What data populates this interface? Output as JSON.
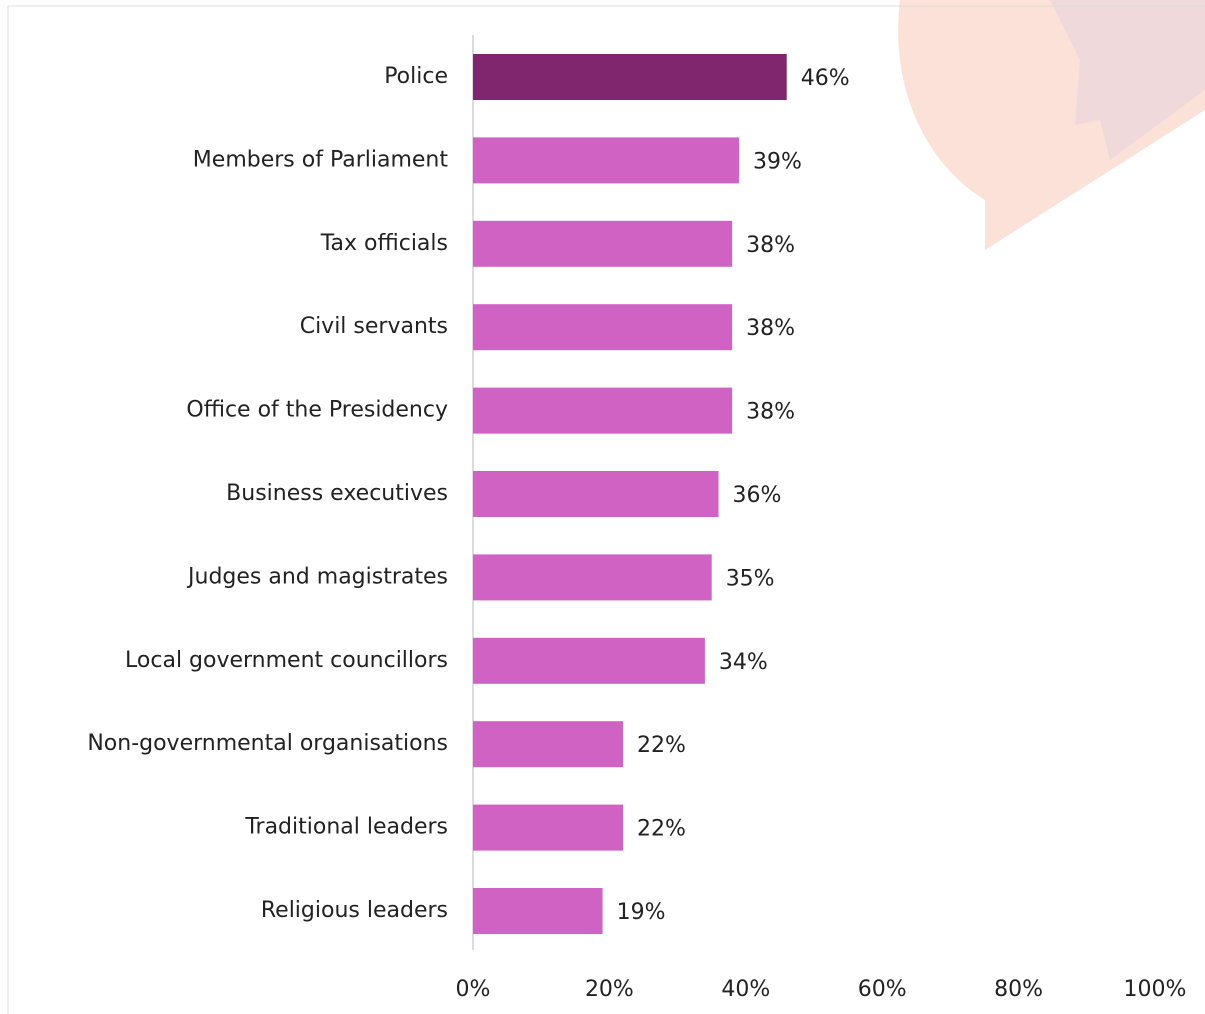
{
  "chart_data": {
    "type": "bar",
    "orientation": "horizontal",
    "categories": [
      "Police",
      "Members of Parliament",
      "Tax officials",
      "Civil servants",
      "Office of the Presidency",
      "Business executives",
      "Judges and magistrates",
      "Local government councillors",
      "Non-governmental organisations",
      "Traditional leaders",
      "Religious leaders"
    ],
    "values": [
      46,
      39,
      38,
      38,
      38,
      36,
      35,
      34,
      22,
      22,
      19
    ],
    "value_labels": [
      "46%",
      "39%",
      "38%",
      "38%",
      "38%",
      "36%",
      "35%",
      "34%",
      "22%",
      "22%",
      "19%"
    ],
    "colors": [
      "#80266f",
      "#d062c4",
      "#d062c4",
      "#d062c4",
      "#d062c4",
      "#d062c4",
      "#d062c4",
      "#d062c4",
      "#d062c4",
      "#d062c4",
      "#d062c4"
    ],
    "xlim": [
      0,
      100
    ],
    "xticks": [
      {
        "value": 0,
        "label": "0%"
      },
      {
        "value": 20,
        "label": "20%"
      },
      {
        "value": 40,
        "label": "40%"
      },
      {
        "value": 60,
        "label": "60%"
      },
      {
        "value": 80,
        "label": "80%"
      },
      {
        "value": 100,
        "label": "100%"
      }
    ],
    "grid": false
  }
}
